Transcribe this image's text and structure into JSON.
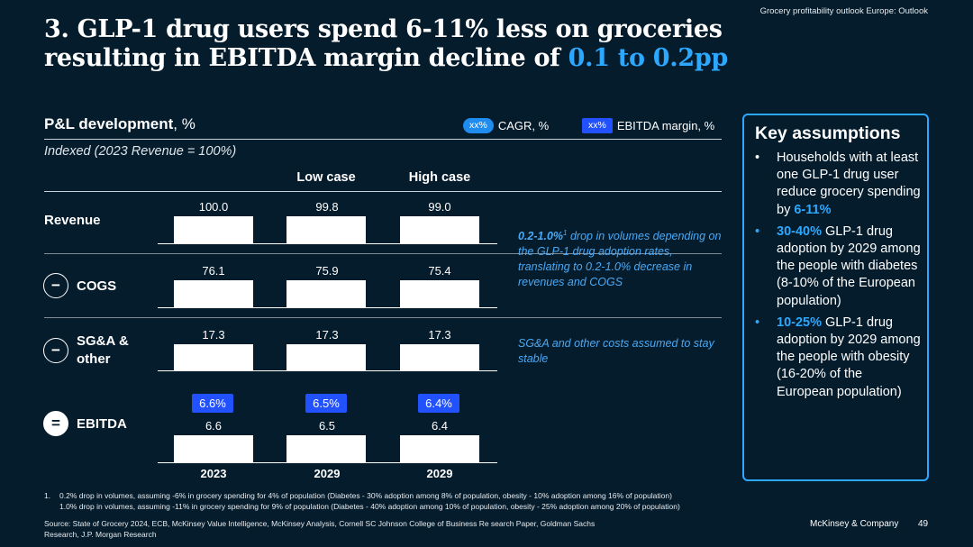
{
  "header": {
    "source_tag": "Grocery profitability outlook Europe: Outlook",
    "title_line1": "3. GLP-1 drug users spend 6-11% less on groceries",
    "title_line2_prefix": "resulting in EBITDA margin decline of ",
    "title_line2_highlight": "0.1 to 0.2pp"
  },
  "pl": {
    "title_bold": "P&L development",
    "title_unit": ", %",
    "legend_cagr_pill": "xx%",
    "legend_cagr_label": "CAGR, %",
    "legend_ebitda_pill": "xx%",
    "legend_ebitda_label": "EBITDA margin, %",
    "indexed_label": "Indexed (2023 Revenue = 100%)",
    "col_low": "Low case",
    "col_high": "High case"
  },
  "rows": {
    "revenue": {
      "label": "Revenue",
      "values": [
        "100.0",
        "99.8",
        "99.0"
      ]
    },
    "cogs": {
      "operator": "−",
      "label": "COGS",
      "values": [
        "76.1",
        "75.9",
        "75.4"
      ]
    },
    "sga": {
      "operator": "−",
      "label_line1": "SG&A &",
      "label_line2": "other",
      "values": [
        "17.3",
        "17.3",
        "17.3"
      ]
    },
    "ebitda": {
      "operator": "=",
      "label": "EBITDA",
      "values": [
        "6.6",
        "6.5",
        "6.4"
      ],
      "margins": [
        "6.6%",
        "6.5%",
        "6.4%"
      ]
    }
  },
  "years": [
    "2023",
    "2029",
    "2029"
  ],
  "notes": {
    "volume_bold": "0.2-1.0%",
    "volume_sup": "1",
    "volume_text": " drop in volumes depending on the GLP-1 drug adoption rates, translating to 0.2-1.0% decrease in revenues and COGS",
    "sga_text": "SG&A and other costs assumed to stay stable"
  },
  "key_assumptions": {
    "title": "Key assumptions",
    "bullet": "•",
    "items": [
      {
        "text": "Households with at least one GLP-1 drug user reduce grocery spending by ",
        "highlight": "6-11%",
        "suffix": ""
      },
      {
        "text": "",
        "highlight": "30-40%",
        "suffix": " GLP-1 drug adoption by 2029 among the people with diabetes (8-10% of the European population)"
      },
      {
        "text": "",
        "highlight": "10-25%",
        "suffix": " GLP-1 drug adoption by 2029 among the people with obesity (16-20% of the European population)"
      }
    ]
  },
  "footer": {
    "footnote_num": "1.",
    "footnote_line1": "0.2% drop in volumes, assuming -6% in grocery spending for 4% of population (Diabetes - 30% adoption among 8% of population, obesity - 10% adoption among 16% of population)",
    "footnote_line2": "1.0% drop in volumes, assuming -11% in grocery spending for 9% of population (Diabetes - 40% adoption among 10% of population, obesity - 25% adoption among 20% of population)",
    "sources": "Source: State of Grocery 2024, ECB, McKinsey Value Intelligence, McKinsey Analysis, Cornell SC Johnson College of Business Re search Paper, Goldman Sachs Research, J.P. Morgan Research",
    "brand": "McKinsey & Company",
    "page_number": "49"
  },
  "colors": {
    "background": "#051c2c",
    "accent_blue": "#2ca8ff",
    "badge_blue": "#2251ff",
    "cagr_pill": "#1f8cf0",
    "note_blue": "#4aa9f5"
  }
}
